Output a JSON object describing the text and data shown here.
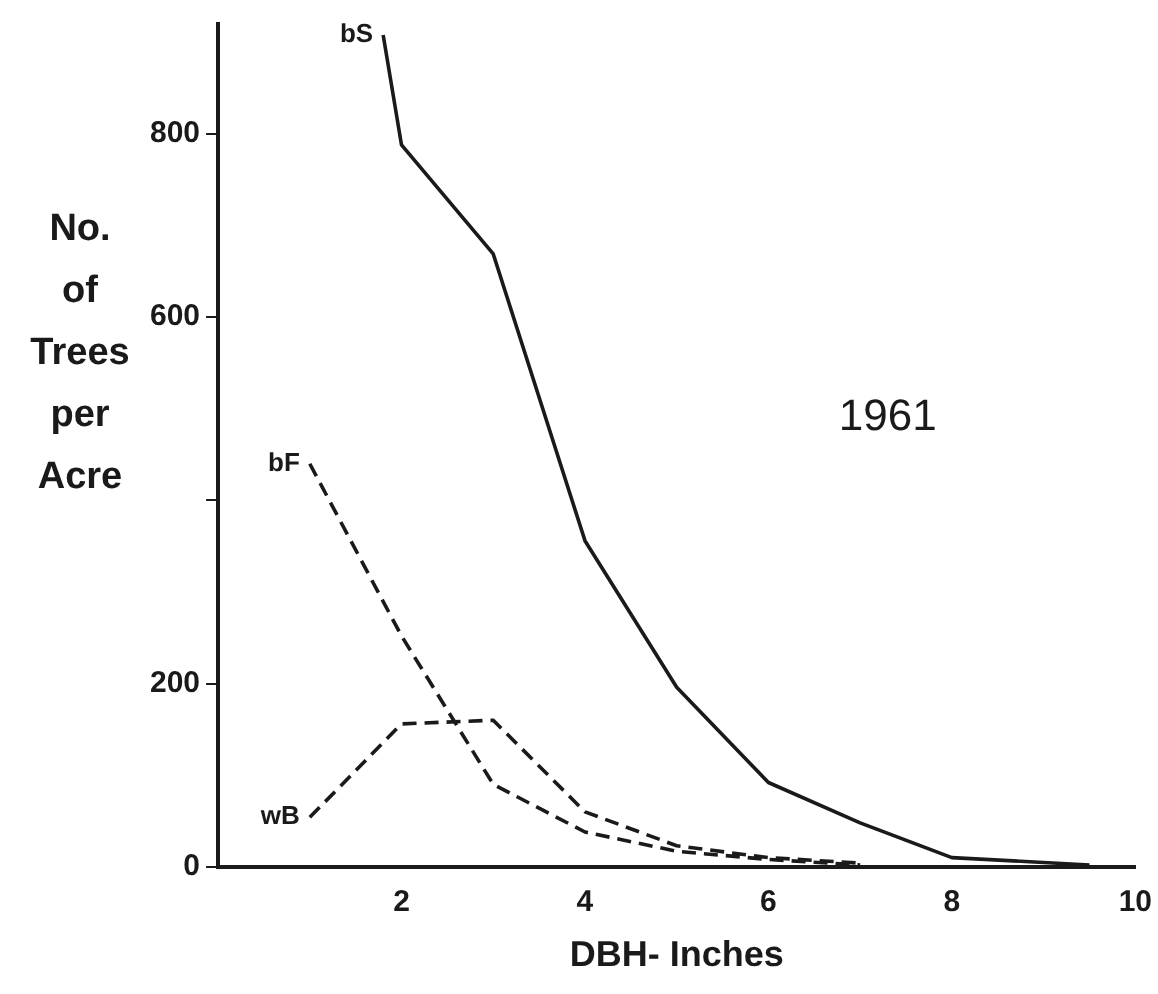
{
  "chart_data": {
    "type": "line",
    "xlabel": "DBH- Inches",
    "ylabel": "No. of Trees per Acre",
    "annotations": [
      "1961"
    ],
    "xlim": [
      0,
      10
    ],
    "xticks": [
      {
        "value": 0,
        "label": null
      },
      2,
      4,
      6,
      8,
      10
    ],
    "ylim": [
      0,
      920
    ],
    "yticks": [
      0,
      200,
      {
        "value": 400,
        "label": null
      },
      600,
      800
    ],
    "grid": false,
    "legend": false,
    "marker": "none",
    "series": [
      {
        "name": "bS",
        "color": "#1a1a1a",
        "line_style": "solid",
        "x": [
          1.8,
          2,
          3,
          4,
          5,
          6,
          7,
          8,
          9.5
        ],
        "values": [
          908,
          788,
          669,
          356,
          196,
          92,
          48,
          10,
          2
        ]
      },
      {
        "name": "bF",
        "color": "#1a1a1a",
        "line_style": "dashed",
        "x": [
          1,
          2,
          3,
          4,
          5,
          6,
          7
        ],
        "values": [
          440,
          252,
          90,
          38,
          17,
          8,
          2
        ]
      },
      {
        "name": "wB",
        "color": "#1a1a1a",
        "line_style": "dashed",
        "x": [
          1,
          2,
          3,
          4,
          5,
          6,
          7
        ],
        "values": [
          54,
          156,
          160,
          60,
          23,
          10,
          4
        ]
      }
    ]
  }
}
